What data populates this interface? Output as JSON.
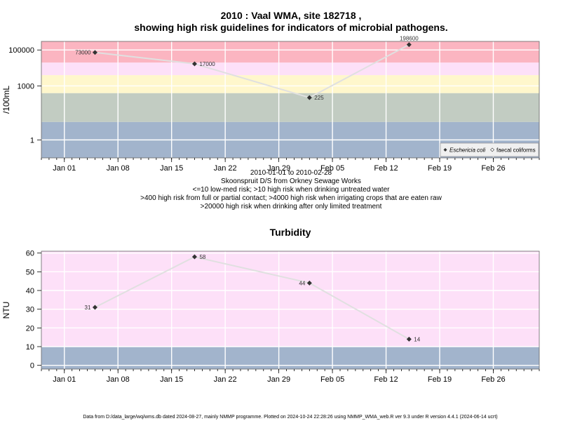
{
  "main_title_line1": "2010 : Vaal WMA, site 182718 ,",
  "main_title_line2": "showing high risk guidelines for indicators of microbial pathogens.",
  "top_caption": [
    "2010-01-01 to 2010-02-28",
    "Skoonspruit D/S from Orkney Sewage Works",
    "<=10 low-med risk; >10 high risk when drinking untreated water",
    ">400 high risk from full or partial contact; >4000 high risk when irrigating crops that are eaten raw",
    ">20000 high risk when drinking after only limited treatment"
  ],
  "footer": "Data from D:/data_large/wq/wms.db dated 2024-08-27, mainly NMMP programme. Plotted on 2024-10-24 22:28:26 using NMMP_WMA_web.R ver 9.3 under R version 4.4.1 (2024-06-14 ucrt)",
  "colors": {
    "band_blue": "#a2b4cc",
    "band_grey": "#c2ccc2",
    "band_yellow": "#fff7cc",
    "band_pink_light": "#fde0f8",
    "band_red": "#fbb5c1",
    "grid": "#ffffff",
    "line": "#e0e0e0",
    "point": "#333333"
  },
  "chart_data": [
    {
      "type": "line",
      "title": "",
      "ylabel": "/100mL",
      "y_scale": "log",
      "ylim": [
        0.1,
        300000
      ],
      "x_axis": "date",
      "xlim": [
        "2009-12-29",
        "2010-03-04"
      ],
      "x_ticks": [
        "Jan 01",
        "Jan 08",
        "Jan 15",
        "Jan 22",
        "Jan 29",
        "Feb 05",
        "Feb 12",
        "Feb 19",
        "Feb 26"
      ],
      "x_tick_dates": [
        "2010-01-01",
        "2010-01-08",
        "2010-01-15",
        "2010-01-22",
        "2010-01-29",
        "2010-02-05",
        "2010-02-12",
        "2010-02-19",
        "2010-02-26"
      ],
      "y_ticks": [
        1,
        1000,
        100000
      ],
      "y_tick_labels": [
        "1",
        "1000",
        "100000"
      ],
      "bands": [
        {
          "from": 0.1,
          "to": 10,
          "color": "#a2b4cc"
        },
        {
          "from": 10,
          "to": 400,
          "color": "#c2ccc2"
        },
        {
          "from": 400,
          "to": 4000,
          "color": "#fff7cc"
        },
        {
          "from": 4000,
          "to": 20000,
          "color": "#fde0f8"
        },
        {
          "from": 20000,
          "to": 300000,
          "color": "#fbb5c1"
        }
      ],
      "series": [
        {
          "name": "Eschericia coli",
          "dates": [
            "2010-01-05",
            "2010-01-18",
            "2010-02-02",
            "2010-02-15"
          ],
          "values": [
            73000,
            17000,
            225,
            198600
          ],
          "labels": [
            "73000",
            "17000",
            "225",
            "198600"
          ],
          "label_pos": [
            "left",
            "right",
            "right",
            "top"
          ]
        }
      ],
      "legend": {
        "placement": "bottom-right",
        "entries": [
          "Eschericia coli",
          "faecal coliforms"
        ]
      }
    },
    {
      "type": "line",
      "title": "Turbidity",
      "ylabel": "NTU",
      "ylim": [
        -2,
        61
      ],
      "x_axis": "date",
      "xlim": [
        "2009-12-29",
        "2010-03-04"
      ],
      "x_ticks": [
        "Jan 01",
        "Jan 08",
        "Jan 15",
        "Jan 22",
        "Jan 29",
        "Feb 05",
        "Feb 12",
        "Feb 19",
        "Feb 26"
      ],
      "x_tick_dates": [
        "2010-01-01",
        "2010-01-08",
        "2010-01-15",
        "2010-01-22",
        "2010-01-29",
        "2010-02-05",
        "2010-02-12",
        "2010-02-19",
        "2010-02-26"
      ],
      "y_ticks": [
        0,
        10,
        20,
        30,
        40,
        50,
        60
      ],
      "y_tick_labels": [
        "0",
        "10",
        "20",
        "30",
        "40",
        "50",
        "60"
      ],
      "bands": [
        {
          "from": -2,
          "to": 10,
          "color": "#a2b4cc"
        },
        {
          "from": 10,
          "to": 61,
          "color": "#fde0f8"
        }
      ],
      "series": [
        {
          "name": "Turbidity",
          "dates": [
            "2010-01-05",
            "2010-01-18",
            "2010-02-02",
            "2010-02-15"
          ],
          "values": [
            31,
            58,
            44,
            14
          ],
          "labels": [
            "31",
            "58",
            "44",
            "14"
          ],
          "label_pos": [
            "left",
            "right",
            "left",
            "right"
          ]
        }
      ]
    }
  ]
}
